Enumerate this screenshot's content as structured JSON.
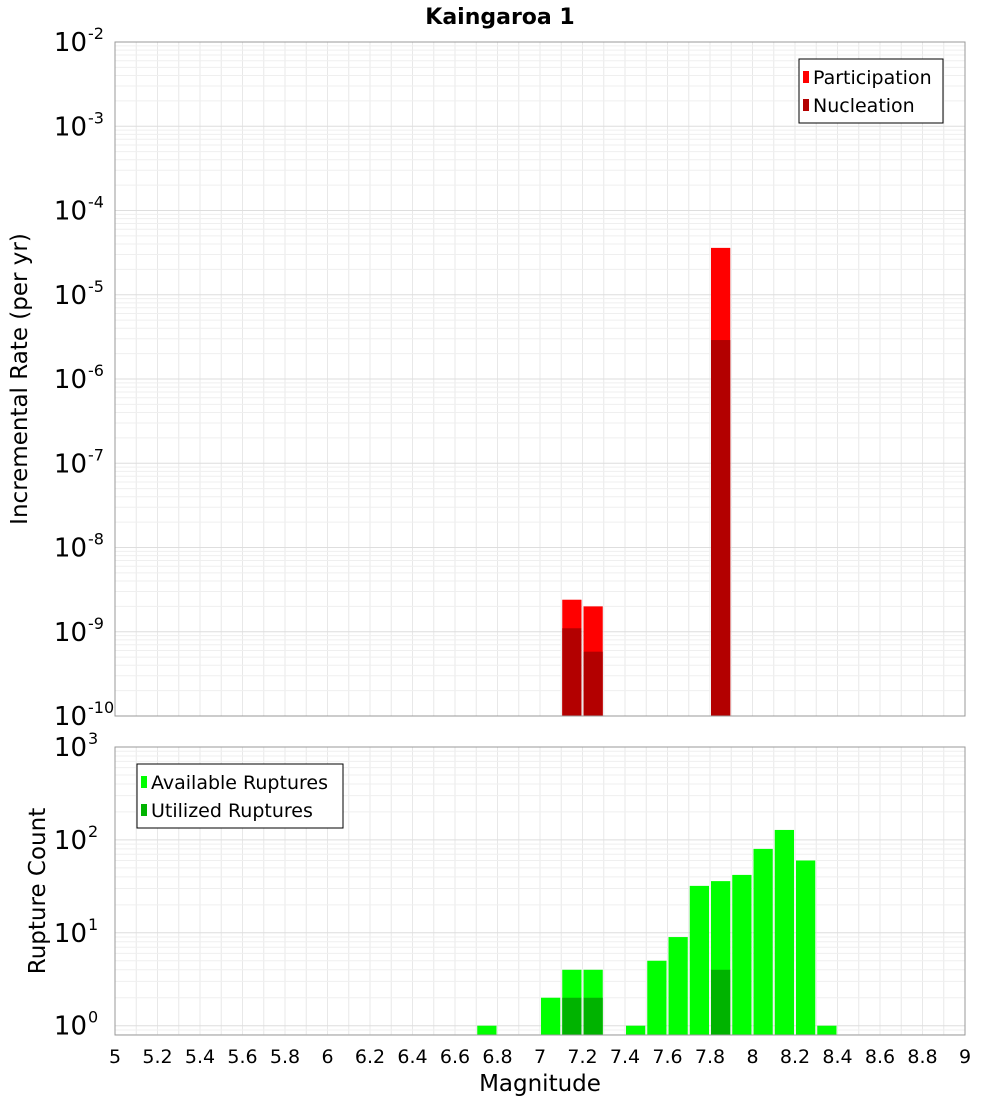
{
  "title": "Kaingaroa 1",
  "chart_data": [
    {
      "type": "bar",
      "name": "rate-panel",
      "ylabel": "Incremental Rate (per yr)",
      "yscale": "log",
      "ylim_exp": [
        -10,
        -2
      ],
      "y_tick_labels": [
        "10",
        "10",
        "10",
        "10",
        "10",
        "10",
        "10",
        "10",
        "10"
      ],
      "y_tick_exponents": [
        "-10",
        "-9",
        "-8",
        "-7",
        "-6",
        "-5",
        "-4",
        "-3",
        "-2"
      ],
      "y_tick_values": [
        -10,
        -9,
        -8,
        -7,
        -6,
        -5,
        -4,
        -3,
        -2
      ],
      "xlim": [
        5,
        9
      ],
      "bar_width": 0.1,
      "grid": true,
      "legend_position": "top-right",
      "series": [
        {
          "name": "Participation",
          "color": "#ff0000",
          "points": [
            [
              7.15,
              2.4e-09
            ],
            [
              7.25,
              2e-09
            ],
            [
              7.85,
              3.6e-05
            ]
          ]
        },
        {
          "name": "Nucleation",
          "color": "#b30000",
          "points": [
            [
              7.15,
              1.1e-09
            ],
            [
              7.25,
              5.8e-10
            ],
            [
              7.85,
              2.9e-06
            ]
          ]
        }
      ]
    },
    {
      "type": "bar",
      "name": "count-panel",
      "ylabel": "Rupture Count",
      "yscale": "log",
      "ylim_exp": [
        -0.1,
        3
      ],
      "y_tick_labels": [
        "10",
        "10",
        "10",
        "10"
      ],
      "y_tick_exponents": [
        "0",
        "1",
        "2",
        "3"
      ],
      "y_tick_values": [
        0,
        1,
        2,
        3
      ],
      "xlim": [
        5,
        9
      ],
      "bar_width": 0.1,
      "xlabel": "Magnitude",
      "x_ticks": [
        "5",
        "5.2",
        "5.4",
        "5.6",
        "5.8",
        "6",
        "6.2",
        "6.4",
        "6.6",
        "6.8",
        "7",
        "7.2",
        "7.4",
        "7.6",
        "7.8",
        "8",
        "8.2",
        "8.4",
        "8.6",
        "8.8",
        "9"
      ],
      "grid": true,
      "legend_position": "top-left",
      "series": [
        {
          "name": "Available Ruptures",
          "color": "#00ff00",
          "points": [
            [
              6.75,
              1
            ],
            [
              7.05,
              2
            ],
            [
              7.15,
              4
            ],
            [
              7.25,
              4
            ],
            [
              7.45,
              1
            ],
            [
              7.55,
              5
            ],
            [
              7.65,
              9
            ],
            [
              7.75,
              32
            ],
            [
              7.85,
              36
            ],
            [
              7.95,
              42
            ],
            [
              8.05,
              80
            ],
            [
              8.15,
              128
            ],
            [
              8.25,
              60
            ],
            [
              8.35,
              1
            ]
          ]
        },
        {
          "name": "Utilized Ruptures",
          "color": "#00b300",
          "points": [
            [
              7.15,
              2
            ],
            [
              7.25,
              2
            ],
            [
              7.85,
              4
            ]
          ]
        }
      ]
    }
  ]
}
